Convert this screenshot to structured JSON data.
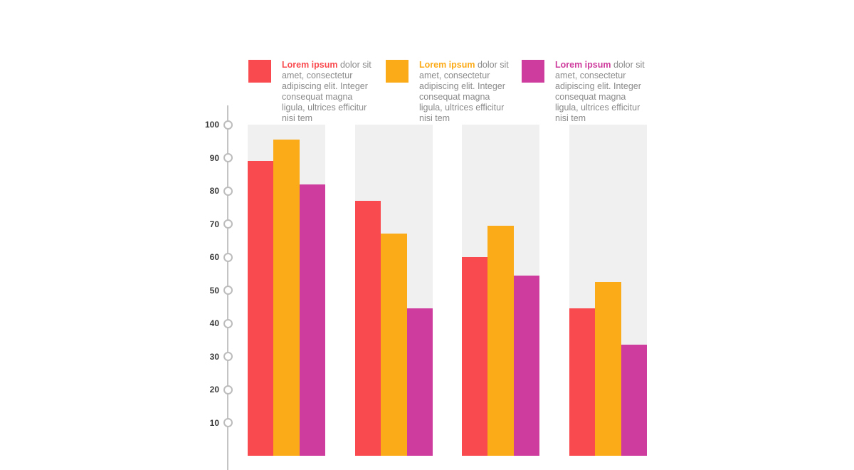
{
  "colors": {
    "background": "#ffffff",
    "column_background": "#f0f0f0",
    "axis_line": "#c4c4c4",
    "tick_circle_border": "#bcbcbc",
    "tick_label": "#3c3c3c",
    "legend_body_text": "#8a8a8a"
  },
  "legend": {
    "items": [
      {
        "title": "Lorem ipsum",
        "text": "dolor sit amet, consectetur adipiscing elit. Integer consequat magna ligula, ultrices efficitur nisi tem",
        "color": "#f94b4f"
      },
      {
        "title": "Lorem ipsum",
        "text": "dolor sit amet, consectetur adipiscing elit. Integer consequat magna ligula, ultrices efficitur nisi tem",
        "color": "#fcab18"
      },
      {
        "title": "Lorem ipsum",
        "text": "dolor sit amet, consectetur adipiscing elit. Integer consequat magna ligula, ultrices efficitur nisi tem",
        "color": "#ce3c9d"
      }
    ]
  },
  "chart_data": {
    "type": "bar",
    "title": "",
    "xlabel": "",
    "ylabel": "",
    "categories": [
      "",
      "",
      "",
      ""
    ],
    "series": [
      {
        "name": "Lorem ipsum",
        "color": "#f94b4f",
        "values": [
          89,
          77,
          60,
          44.5
        ]
      },
      {
        "name": "Lorem ipsum",
        "color": "#fcab18",
        "values": [
          95.5,
          67,
          69.5,
          52.5
        ]
      },
      {
        "name": "Lorem ipsum",
        "color": "#ce3c9d",
        "values": [
          82,
          44.5,
          54.5,
          33.5
        ]
      }
    ],
    "ylim": [
      0,
      100
    ],
    "yticks": [
      100,
      90,
      80,
      70,
      60,
      50,
      40,
      30,
      20,
      10
    ],
    "tick_marker_style": "circle",
    "grid": false,
    "legend_position": "top",
    "note": "x-axis baseline and category labels are cropped off the bottom edge of the image"
  }
}
